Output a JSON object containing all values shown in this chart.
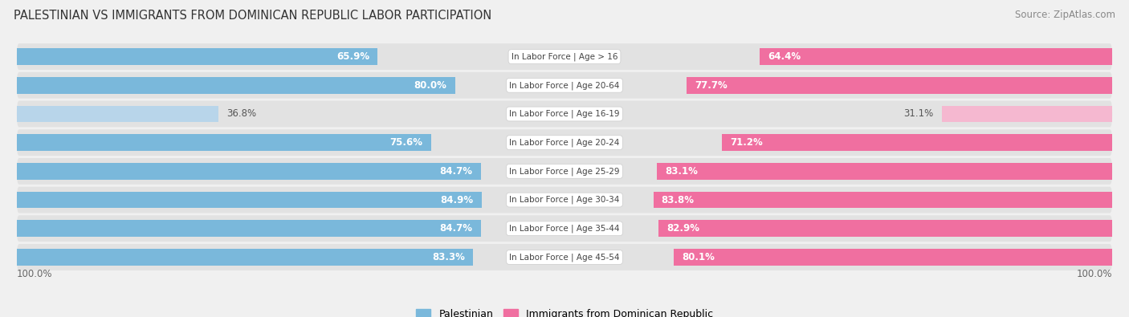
{
  "title": "PALESTINIAN VS IMMIGRANTS FROM DOMINICAN REPUBLIC LABOR PARTICIPATION",
  "source": "Source: ZipAtlas.com",
  "categories": [
    "In Labor Force | Age > 16",
    "In Labor Force | Age 20-64",
    "In Labor Force | Age 16-19",
    "In Labor Force | Age 20-24",
    "In Labor Force | Age 25-29",
    "In Labor Force | Age 30-34",
    "In Labor Force | Age 35-44",
    "In Labor Force | Age 45-54"
  ],
  "palestinian_values": [
    65.9,
    80.0,
    36.8,
    75.6,
    84.7,
    84.9,
    84.7,
    83.3
  ],
  "dominican_values": [
    64.4,
    77.7,
    31.1,
    71.2,
    83.1,
    83.8,
    82.9,
    80.1
  ],
  "palestinian_color": "#7ab8db",
  "palestinian_light_color": "#b8d5ea",
  "dominican_color": "#f06fa0",
  "dominican_light_color": "#f5b8d0",
  "background_color": "#f0f0f0",
  "row_bg_color": "#e8e8e8",
  "bar_bg_color": "#dcdcdc",
  "max_value": 100.0,
  "legend_labels": [
    "Palestinian",
    "Immigrants from Dominican Republic"
  ]
}
